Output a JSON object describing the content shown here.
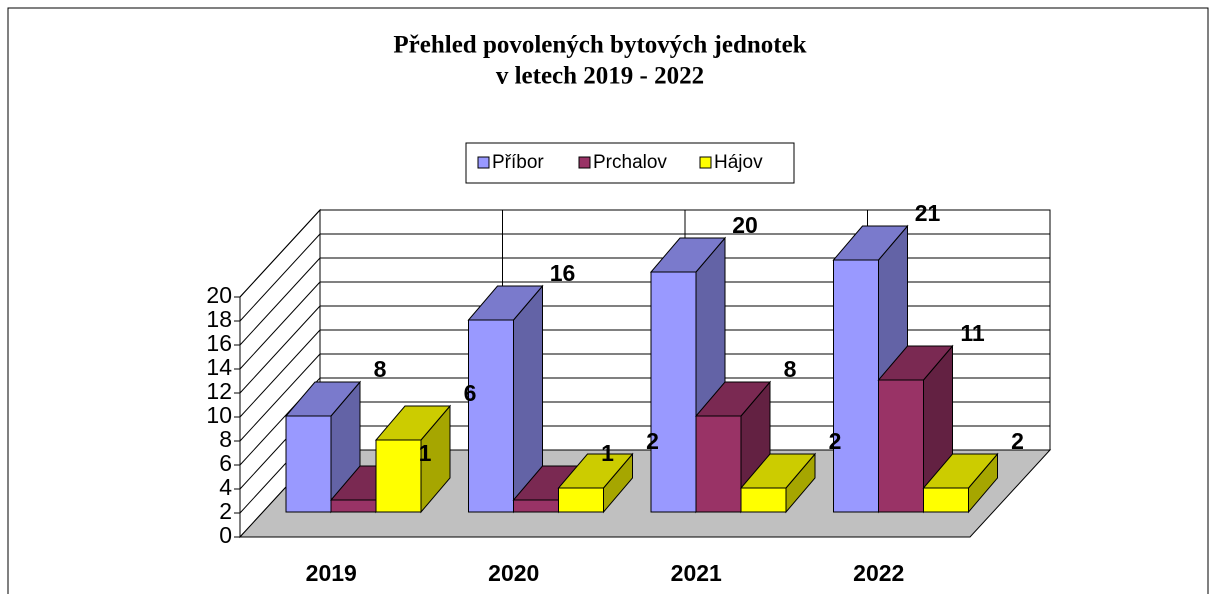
{
  "chart_data": {
    "type": "bar3d",
    "title": [
      "Přehled povolených bytových jednotek",
      "v letech 2019 - 2022"
    ],
    "categories": [
      "2019",
      "2020",
      "2021",
      "2022"
    ],
    "series": [
      {
        "name": "Příbor",
        "color": "#9999ff",
        "values": [
          8,
          16,
          20,
          21
        ]
      },
      {
        "name": "Prchalov",
        "color": "#993366",
        "values": [
          1,
          1,
          8,
          11
        ]
      },
      {
        "name": "Hájov",
        "color": "#ffff00",
        "values": [
          6,
          2,
          2,
          2
        ]
      }
    ],
    "ylim": [
      0,
      20
    ],
    "yticks": [
      0,
      2,
      4,
      6,
      8,
      10,
      12,
      14,
      16,
      18,
      20
    ],
    "grid": true,
    "legend": "top"
  }
}
